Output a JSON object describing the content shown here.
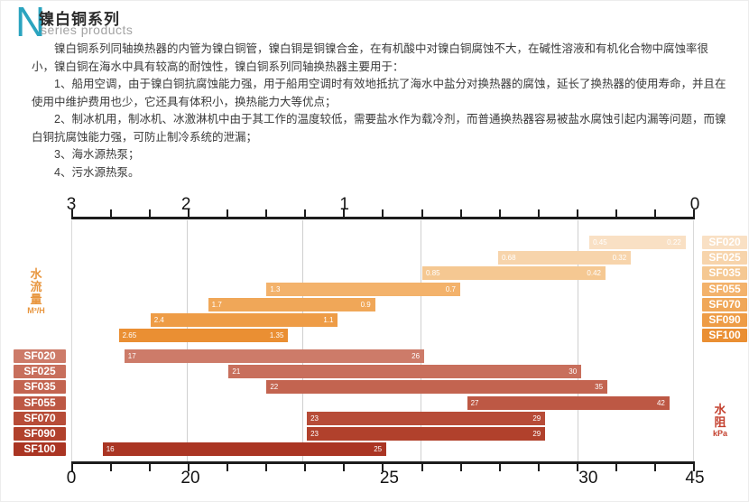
{
  "header": {
    "logo_letter": "N",
    "title_cn": "镍白铜系列",
    "title_en": "series products"
  },
  "body": {
    "intro": "镍白铜系列同轴换热器的内管为镍白铜管，镍白铜是铜镍合金，在有机酸中对镍白铜腐蚀不大，在碱性溶液和有机化合物中腐蚀率很小，镍白铜在海水中具有较高的耐蚀性，镍白铜系列同轴换热器主要用于：",
    "items": [
      "1、船用空调，由于镍白铜抗腐蚀能力强，用于船用空调时有效地抵抗了海水中盐分对换热器的腐蚀，延长了换热器的使用寿命，并且在使用中维护费用也少，它还具有体积小，换热能力大等优点；",
      "2、制冰机用，制冰机、冰激淋机中由于其工作的温度较低，需要盐水作为载冷剂，而普通换热器容易被盐水腐蚀引起内漏等问题，而镍白铜抗腐蚀能力强，可防止制冷系统的泄漏；",
      "3、海水源热泵；",
      "4、污水源热泵。"
    ]
  },
  "chart_data": {
    "type": "bar",
    "orientation": "horizontal-range",
    "models": [
      "SF020",
      "SF025",
      "SF035",
      "SF055",
      "SF070",
      "SF090",
      "SF100"
    ],
    "top_axis": {
      "side": "top",
      "direction": "right-to-left",
      "tick_count": 16,
      "labels": [
        "3",
        "2",
        "1",
        "0"
      ],
      "label_pos_pct": [
        0,
        18.4,
        43.8,
        100
      ]
    },
    "bottom_axis": {
      "side": "bottom",
      "direction": "left-to-right",
      "tick_count": 16,
      "labels": [
        "0",
        "20",
        "25",
        "30",
        "45"
      ],
      "label_pos_pct": [
        0,
        19.1,
        51.0,
        82.9,
        100
      ]
    },
    "gridline_pct": [
      18.4,
      37.0,
      56.1,
      81.4
    ],
    "flow": {
      "name": "水流量",
      "unit": "M³/H",
      "label_color": "#e8963f",
      "series": [
        {
          "model": "SF020",
          "from": "0.45",
          "to": "0.22",
          "start_pct": 83.3,
          "end_pct": 98.8,
          "color": "#f9e0c4"
        },
        {
          "model": "SF025",
          "from": "0.68",
          "to": "0.32",
          "start_pct": 68.6,
          "end_pct": 90.0,
          "color": "#f7d4ab"
        },
        {
          "model": "SF035",
          "from": "0.85",
          "to": "0.42",
          "start_pct": 56.4,
          "end_pct": 85.9,
          "color": "#f5c892"
        },
        {
          "model": "SF055",
          "from": "1.3",
          "to": "0.7",
          "start_pct": 31.3,
          "end_pct": 62.5,
          "color": "#f3b26b"
        },
        {
          "model": "SF070",
          "from": "1.7",
          "to": "0.9",
          "start_pct": 21.9,
          "end_pct": 48.8,
          "color": "#f0a758"
        },
        {
          "model": "SF090",
          "from": "2.4",
          "to": "1.1",
          "start_pct": 12.6,
          "end_pct": 42.8,
          "color": "#ee9c46"
        },
        {
          "model": "SF100",
          "from": "2.65",
          "to": "1.35",
          "start_pct": 7.5,
          "end_pct": 34.8,
          "color": "#ea8f33"
        }
      ]
    },
    "resistance": {
      "name": "水阻",
      "unit": "kPa",
      "label_color": "#c4402e",
      "series": [
        {
          "model": "SF020",
          "from": "17",
          "to": "26",
          "start_pct": 8.4,
          "end_pct": 56.7,
          "color": "#cd7b69"
        },
        {
          "model": "SF025",
          "from": "21",
          "to": "30",
          "start_pct": 25.2,
          "end_pct": 82.0,
          "color": "#c86f5c"
        },
        {
          "model": "SF035",
          "from": "22",
          "to": "35",
          "start_pct": 31.3,
          "end_pct": 86.2,
          "color": "#c36450"
        },
        {
          "model": "SF055",
          "from": "27",
          "to": "42",
          "start_pct": 63.6,
          "end_pct": 96.2,
          "color": "#bd5844"
        },
        {
          "model": "SF070",
          "from": "23",
          "to": "29",
          "start_pct": 37.8,
          "end_pct": 76.2,
          "color": "#b74c38"
        },
        {
          "model": "SF090",
          "from": "23",
          "to": "29",
          "start_pct": 37.8,
          "end_pct": 76.2,
          "color": "#b1412c"
        },
        {
          "model": "SF100",
          "from": "16",
          "to": "25",
          "start_pct": 4.9,
          "end_pct": 50.6,
          "color": "#aa3523"
        }
      ]
    }
  }
}
